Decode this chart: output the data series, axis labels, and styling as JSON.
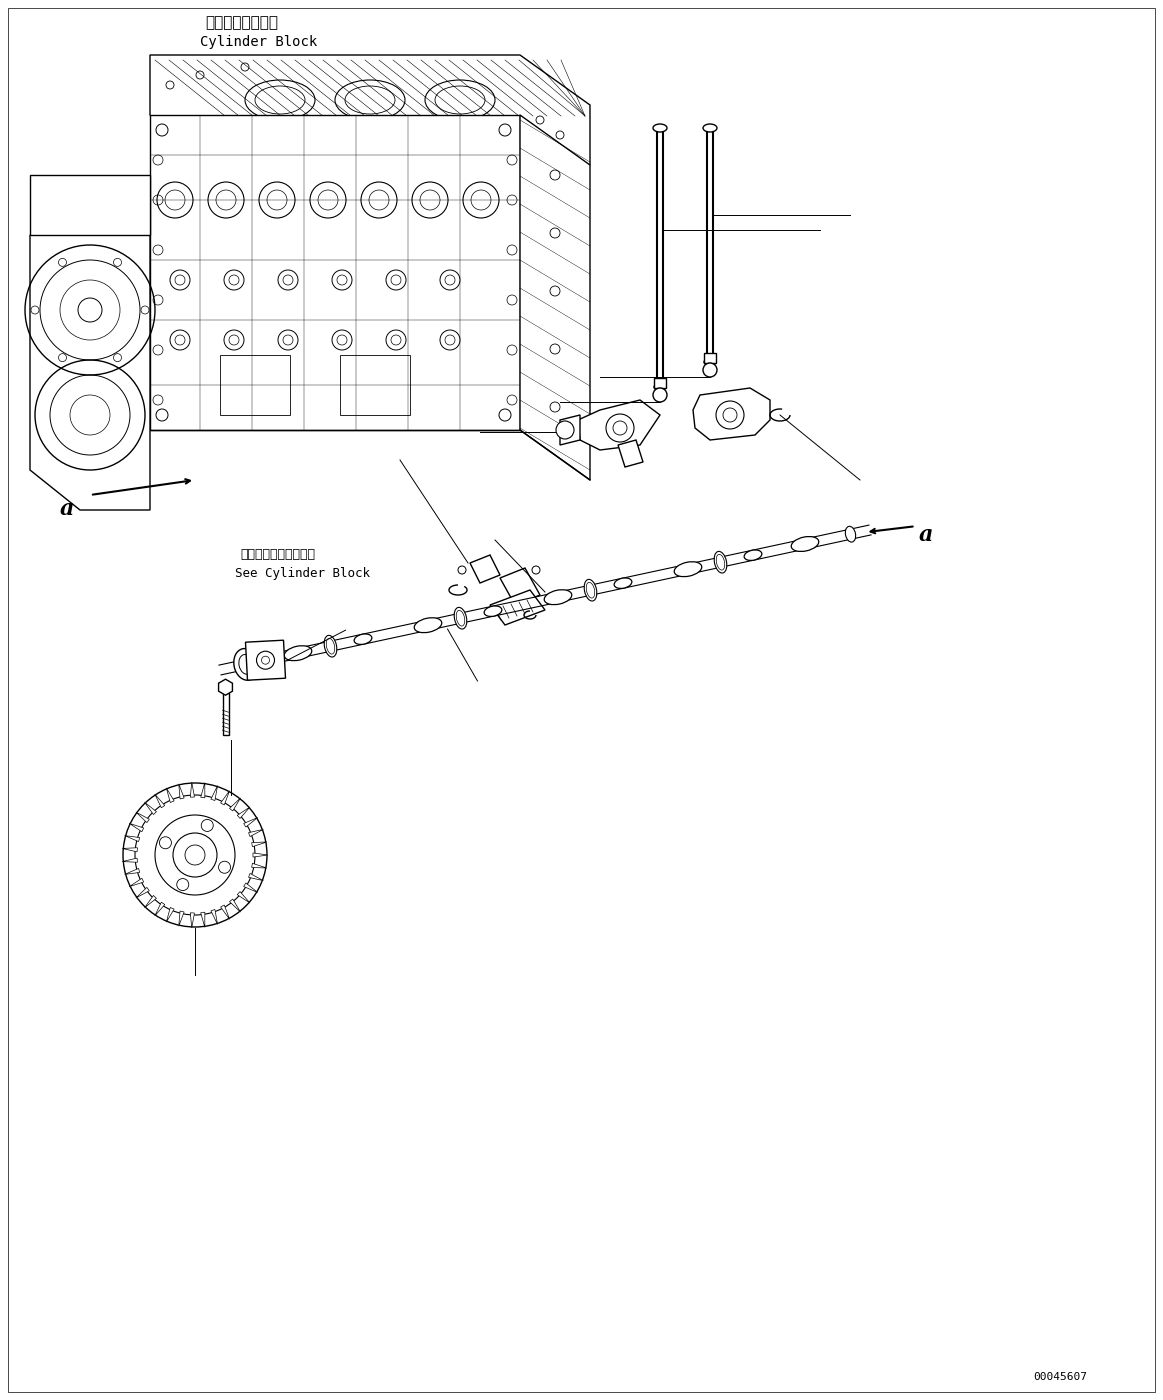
{
  "background_color": "#ffffff",
  "line_color": "#000000",
  "lw": 1.0,
  "japanese_text_1": "シリンダブロック",
  "english_text_1": "Cylinder Block",
  "japanese_text_2": "シリンダブロック参照",
  "english_text_2": "See Cylinder Block",
  "part_number": "00045607",
  "fig_width": 11.63,
  "fig_height": 14.0,
  "dpi": 100
}
